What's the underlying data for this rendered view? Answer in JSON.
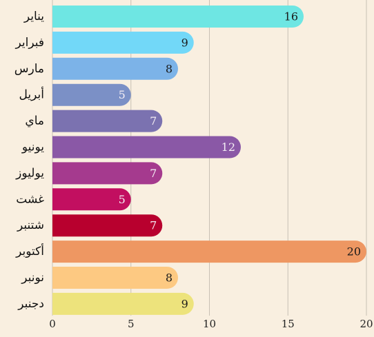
{
  "chart_data": {
    "type": "bar",
    "orientation": "horizontal",
    "categories": [
      "يناير",
      "فبراير",
      "مارس",
      "أبريل",
      "ماي",
      "يونيو",
      "يوليوز",
      "غشت",
      "شتنبر",
      "أكتوبر",
      "نونبر",
      "دجنبر"
    ],
    "values": [
      16,
      9,
      8,
      5,
      7,
      12,
      7,
      5,
      7,
      20,
      8,
      9
    ],
    "colors": [
      "#6ee6e3",
      "#72d8f8",
      "#7cb3e8",
      "#7b90c6",
      "#7b72b0",
      "#8a58a6",
      "#a53a8e",
      "#c20f60",
      "#b8002e",
      "#ee9762",
      "#fdc982",
      "#ede37c"
    ],
    "xlim": [
      0,
      20
    ],
    "xticks": [
      0,
      5,
      10,
      15,
      20
    ],
    "grid": true
  }
}
